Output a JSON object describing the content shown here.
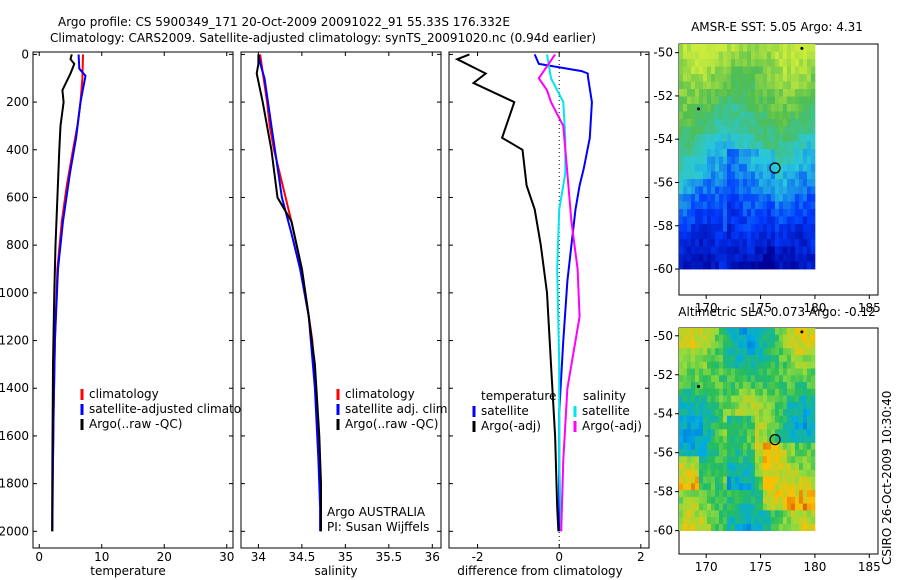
{
  "header": {
    "line1": "Argo profile: CS 5900349_171 20-Oct-2009 20091022_91 55.33S 176.332E",
    "line2": "Climatology: CARS2009. Satellite-adjusted climatology: synTS_20091020.nc (0.94d earlier)"
  },
  "side_text": "CSIRO 26-Oct-2009 10:30:40",
  "colors": {
    "red": "#ff0000",
    "blue": "#0000ff",
    "black": "#000000",
    "cyan": "#00e5ee",
    "magenta": "#ff00ff"
  },
  "chart_data": [
    {
      "type": "line",
      "id": "temperature",
      "xlabel": "temperature",
      "ylabel": "",
      "xlim": [
        -1,
        31
      ],
      "ylim": [
        2050,
        0
      ],
      "xticks": [
        0,
        10,
        20,
        30
      ],
      "yticks": [
        0,
        200,
        400,
        600,
        800,
        1000,
        1200,
        1400,
        1600,
        1800,
        2000
      ],
      "legend": [
        "climatology",
        "satellite-adjusted climatology",
        "Argo(..raw -QC)"
      ],
      "series": [
        {
          "name": "climatology",
          "color": "red",
          "x": [
            7.0,
            6.9,
            6.6,
            6.1,
            5.4,
            4.4,
            3.6,
            2.9,
            2.5,
            2.3,
            2.15,
            2.1
          ],
          "y": [
            0,
            100,
            200,
            300,
            400,
            550,
            700,
            900,
            1200,
            1500,
            1800,
            2000
          ]
        },
        {
          "name": "satellite-adjusted climatology",
          "color": "blue",
          "x": [
            6.3,
            6.4,
            7.4,
            6.6,
            5.9,
            4.9,
            3.8,
            3.0,
            2.5,
            2.3,
            2.15,
            2.1
          ],
          "y": [
            0,
            60,
            90,
            200,
            350,
            500,
            700,
            900,
            1200,
            1500,
            1800,
            2000
          ]
        },
        {
          "name": "Argo(..raw -QC)",
          "color": "black",
          "x": [
            5.2,
            5.0,
            5.6,
            5.0,
            3.7,
            3.9,
            3.4,
            3.2,
            2.9,
            2.6,
            2.4,
            2.2,
            2.1,
            2.05
          ],
          "y": [
            0,
            20,
            40,
            80,
            150,
            200,
            300,
            400,
            600,
            800,
            1000,
            1300,
            1700,
            2000
          ]
        }
      ]
    },
    {
      "type": "line",
      "id": "salinity",
      "xlabel": "salinity",
      "ylabel": "",
      "xlim": [
        33.8,
        36.1
      ],
      "xticks": [
        34,
        34.5,
        35,
        35.5,
        36
      ],
      "legend": [
        "climatology",
        "satellite adj. clim.",
        "Argo(..raw -QC)"
      ],
      "series": [
        {
          "name": "climatology",
          "color": "red",
          "x": [
            34.02,
            34.06,
            34.1,
            34.13,
            34.18,
            34.28,
            34.38,
            34.5,
            34.62,
            34.68,
            34.71,
            34.72
          ],
          "y": [
            0,
            100,
            200,
            300,
            400,
            550,
            700,
            900,
            1200,
            1500,
            1800,
            2000
          ]
        },
        {
          "name": "satellite adj. clim.",
          "color": "blue",
          "x": [
            34.0,
            34.03,
            34.07,
            34.11,
            34.15,
            34.21,
            34.27,
            34.38,
            34.48,
            34.58,
            34.65,
            34.69,
            34.71,
            34.71
          ],
          "y": [
            0,
            50,
            100,
            200,
            300,
            450,
            600,
            750,
            900,
            1100,
            1400,
            1700,
            1900,
            2000
          ]
        },
        {
          "name": "Argo(..raw -QC)",
          "color": "black",
          "x": [
            34.0,
            34.0,
            33.98,
            34.05,
            34.15,
            34.22,
            34.38,
            34.5,
            34.58,
            34.65,
            34.7,
            34.72,
            34.72
          ],
          "y": [
            0,
            40,
            80,
            200,
            400,
            600,
            700,
            900,
            1100,
            1300,
            1600,
            1800,
            2000
          ]
        }
      ],
      "note": [
        "Argo AUSTRALIA",
        "PI: Susan Wijffels"
      ]
    },
    {
      "type": "line",
      "id": "difference",
      "xlabel": "difference from climatology",
      "ylabel": "",
      "xlim": [
        -2.7,
        2.2
      ],
      "xticks": [
        -2,
        0,
        2
      ],
      "legend_headers": [
        "temperature",
        "salinity"
      ],
      "legend": [
        "satellite",
        "Argo(-adj)",
        "satellite",
        "Argo(-adj)"
      ],
      "series": [
        {
          "name": "temperature satellite",
          "color": "blue",
          "x": [
            -0.6,
            -0.5,
            0.55,
            0.7,
            0.7,
            0.8,
            0.75,
            0.6,
            0.5,
            0.4,
            0.3,
            0.2,
            0.1,
            0.0,
            0.0,
            0.0
          ],
          "y": [
            0,
            40,
            70,
            80,
            90,
            200,
            350,
            480,
            550,
            650,
            800,
            950,
            1200,
            1500,
            1800,
            2000
          ]
        },
        {
          "name": "temperature Argo(-adj)",
          "color": "black",
          "x": [
            -2.2,
            -2.5,
            -1.8,
            -2.1,
            -1.1,
            -1.4,
            -0.9,
            -0.8,
            -0.6,
            -0.45,
            -0.3,
            -0.2,
            -0.1,
            -0.05,
            -0.02
          ],
          "y": [
            0,
            20,
            80,
            120,
            200,
            350,
            400,
            550,
            650,
            800,
            1000,
            1300,
            1600,
            1900,
            2000
          ]
        },
        {
          "name": "salinity satellite",
          "color": "cyan",
          "x": [
            -0.3,
            -0.2,
            0.1,
            0.15,
            0.15,
            0.0,
            -0.05,
            0.0,
            0.0,
            0.05
          ],
          "y": [
            0,
            100,
            200,
            350,
            500,
            650,
            900,
            1300,
            1700,
            2000
          ]
        },
        {
          "name": "salinity Argo(-adj)",
          "color": "magenta",
          "x": [
            -0.1,
            -0.3,
            -0.5,
            -0.3,
            -0.2,
            0.1,
            0.2,
            0.3,
            0.45,
            0.5,
            0.2,
            0.1,
            0.05
          ],
          "y": [
            0,
            50,
            100,
            150,
            200,
            300,
            500,
            700,
            900,
            1100,
            1400,
            1700,
            2000
          ]
        }
      ]
    },
    {
      "type": "heatmap",
      "id": "sst_map",
      "title": "AMSR-E SST: 5.05 Argo: 4.31",
      "xlim": [
        167.5,
        185.8
      ],
      "ylim": [
        -61.2,
        -49.6
      ],
      "xticks": [
        170,
        175,
        180,
        185
      ],
      "yticks": [
        -50,
        -52,
        -54,
        -56,
        -58,
        -60
      ],
      "argo_marker": {
        "lon": 176.332,
        "lat": -55.33
      },
      "dots": [
        {
          "lon": 169.3,
          "lat": -52.6
        },
        {
          "lon": 178.8,
          "lat": -49.8
        }
      ]
    },
    {
      "type": "heatmap",
      "id": "sla_map",
      "title": "Altimetric SLA: 0.073 Argo: -0.12",
      "xlim": [
        167.5,
        185.8
      ],
      "ylim": [
        -61.2,
        -49.6
      ],
      "xticks": [
        170,
        175,
        180,
        185
      ],
      "yticks": [
        -50,
        -52,
        -54,
        -56,
        -58,
        -60
      ],
      "argo_marker": {
        "lon": 176.332,
        "lat": -55.33
      },
      "dots": [
        {
          "lon": 169.3,
          "lat": -52.6
        },
        {
          "lon": 178.8,
          "lat": -49.8
        }
      ]
    }
  ]
}
